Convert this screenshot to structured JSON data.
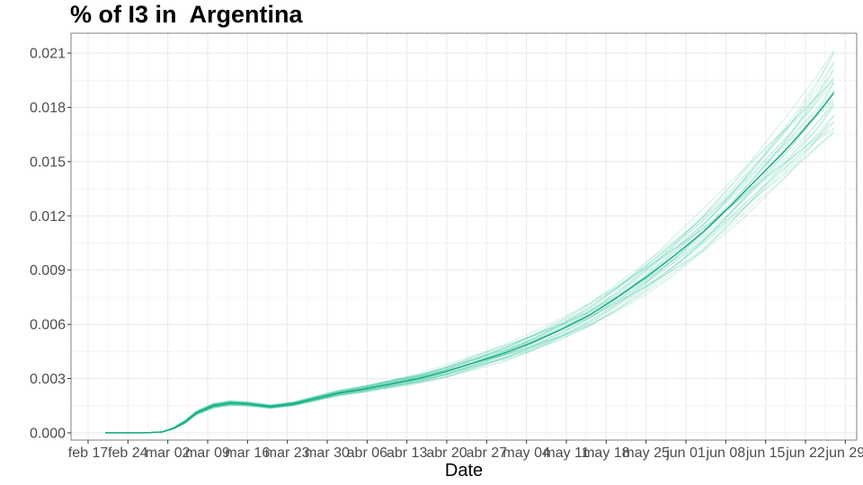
{
  "colors": {
    "series": "#1fbf93",
    "series_dark": "#14a97f",
    "grid_major": "#ebebeb",
    "grid_minor": "#f5f5f5",
    "panel_border": "#7f7f7f",
    "tick_text": "#4d4d4d"
  },
  "chart_data": {
    "type": "line",
    "title": "% of I3 in  Argentina",
    "xlabel": "Date",
    "ylabel": "",
    "x_ticks": [
      "feb 17",
      "feb 24",
      "mar 02",
      "mar 09",
      "mar 16",
      "mar 23",
      "mar 30",
      "abr 06",
      "abr 13",
      "abr 20",
      "abr 27",
      "may 04",
      "may 11",
      "may 18",
      "may 25",
      "jun 01",
      "jun 08",
      "jun 15",
      "jun 22",
      "jun 29"
    ],
    "y_ticks": [
      "0.000",
      "0.003",
      "0.006",
      "0.009",
      "0.012",
      "0.015",
      "0.018",
      "0.021"
    ],
    "ylim": [
      -0.0004,
      0.0221
    ],
    "xlim": [
      "2020-02-14",
      "2020-07-01"
    ],
    "grid": true,
    "series": [
      {
        "x": [
          "2020-02-20",
          "2020-02-27",
          "2020-03-01",
          "2020-03-03",
          "2020-03-05",
          "2020-03-07",
          "2020-03-10",
          "2020-03-13",
          "2020-03-16",
          "2020-03-20",
          "2020-03-24",
          "2020-03-28",
          "2020-04-01",
          "2020-04-05",
          "2020-04-10",
          "2020-04-15",
          "2020-04-20",
          "2020-04-25",
          "2020-04-30",
          "2020-05-05",
          "2020-05-10",
          "2020-05-15",
          "2020-05-20",
          "2020-05-25",
          "2020-05-30",
          "2020-06-04",
          "2020-06-09",
          "2020-06-14",
          "2020-06-19",
          "2020-06-24",
          "2020-06-27"
        ],
        "values": [
          0.0,
          0.0,
          5e-05,
          0.00025,
          0.0006,
          0.0011,
          0.0015,
          0.00165,
          0.0016,
          0.00145,
          0.0016,
          0.0019,
          0.0022,
          0.0024,
          0.0027,
          0.003,
          0.0034,
          0.0039,
          0.0044,
          0.005,
          0.0057,
          0.0065,
          0.0075,
          0.0086,
          0.0098,
          0.0111,
          0.0126,
          0.0142,
          0.0158,
          0.0176,
          0.0188
        ]
      }
    ],
    "band_spread": [
      0.0,
      0.0,
      1e-05,
      4e-05,
      8e-05,
      0.0001,
      0.00012,
      0.00012,
      0.0001,
      9e-05,
      0.0001,
      0.00012,
      0.00014,
      0.00016,
      0.0002,
      0.00024,
      0.0003,
      0.00034,
      0.0004,
      0.00046,
      0.00052,
      0.0006,
      0.0007,
      0.0008,
      0.0009,
      0.001,
      0.0011,
      0.00125,
      0.0015,
      0.0018,
      0.0022
    ]
  }
}
